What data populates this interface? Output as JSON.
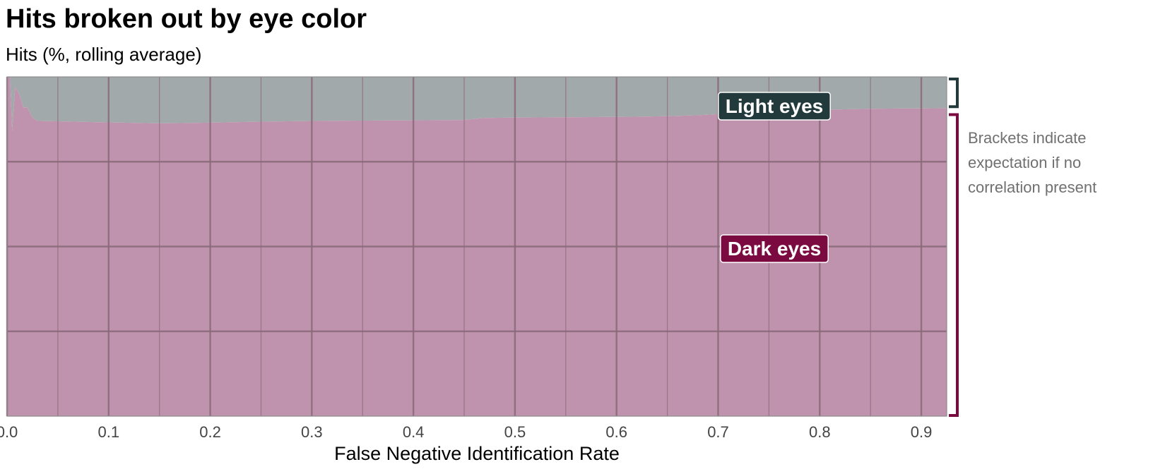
{
  "header": {
    "title": "Hits broken out by eye color",
    "subtitle": "Hits (%, rolling average)"
  },
  "note": {
    "line1": "Brackets indicate",
    "line2": "expectation if no",
    "line3": "correlation present"
  },
  "colors": {
    "dark_fill": "#bf93ad",
    "light_fill": "#a2a9aa",
    "dark_label": "#7a0a40",
    "light_label": "#233a3d",
    "grid": "#8a6878",
    "axis_text": "#444444"
  },
  "chart_data": {
    "type": "area",
    "stacked": true,
    "normalized": true,
    "title": "Hits broken out by eye color",
    "subtitle": "Hits (%, rolling average)",
    "xlabel": "False Negative Identification Rate",
    "ylabel": "",
    "xlim": [
      0,
      0.925
    ],
    "ylim": [
      0,
      100
    ],
    "x_ticks": [
      0.0,
      0.1,
      0.2,
      0.3,
      0.4,
      0.5,
      0.6,
      0.7,
      0.8,
      0.9
    ],
    "x_tick_labels": [
      "0.0",
      "0.1",
      "0.2",
      "0.3",
      "0.4",
      "0.5",
      "0.6",
      "0.7",
      "0.8",
      "0.9"
    ],
    "grid": true,
    "x": [
      0,
      0.003,
      0.005,
      0.008,
      0.012,
      0.016,
      0.02,
      0.025,
      0.03,
      0.05,
      0.1,
      0.15,
      0.2,
      0.25,
      0.3,
      0.35,
      0.4,
      0.45,
      0.46,
      0.47,
      0.5,
      0.55,
      0.6,
      0.65,
      0.68,
      0.7,
      0.75,
      0.8,
      0.85,
      0.9,
      0.925
    ],
    "series": [
      {
        "name": "Dark eyes",
        "values": [
          100,
          100,
          84,
          97,
          95,
          91,
          91,
          88,
          87,
          86.9,
          86.6,
          86.3,
          86.5,
          86.8,
          87.0,
          87.1,
          87.2,
          87.3,
          87.6,
          87.9,
          88.0,
          88.1,
          88.2,
          88.4,
          88.7,
          89.0,
          89.6,
          90.3,
          90.6,
          90.7,
          90.8
        ]
      },
      {
        "name": "Light eyes",
        "values": [
          0,
          0,
          16,
          3,
          5,
          9,
          9,
          12,
          13,
          13.1,
          13.4,
          13.7,
          13.5,
          13.2,
          13.0,
          12.9,
          12.8,
          12.7,
          12.4,
          12.1,
          12.0,
          11.9,
          11.8,
          11.6,
          11.3,
          11.0,
          10.4,
          9.7,
          9.4,
          9.3,
          9.2
        ]
      }
    ],
    "annotations": [
      {
        "label": "Light eyes",
        "series": "Light eyes"
      },
      {
        "label": "Dark eyes",
        "series": "Dark eyes"
      }
    ],
    "brackets": [
      {
        "series": "Light eyes",
        "from": 91,
        "to": 100
      },
      {
        "series": "Dark eyes",
        "from": 0,
        "to": 89.5
      }
    ]
  }
}
